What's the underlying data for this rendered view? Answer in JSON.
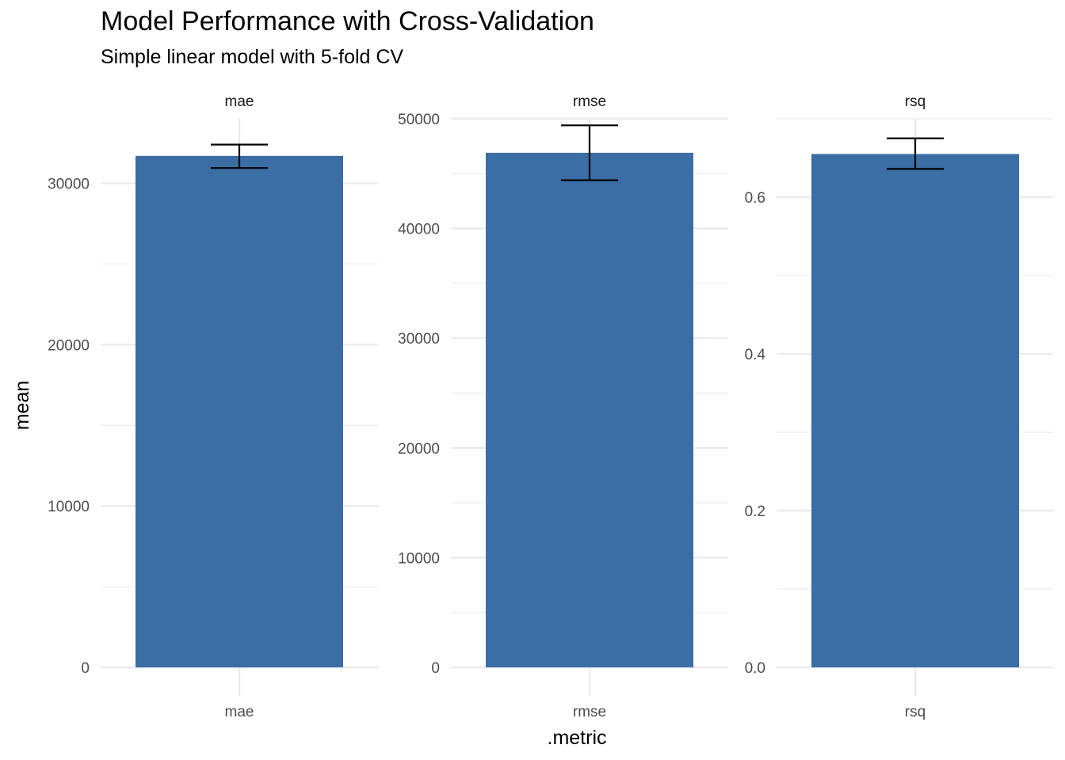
{
  "chart_data": {
    "type": "bar",
    "title": "Model Performance with Cross-Validation",
    "subtitle": "Simple linear model with 5-fold CV",
    "xlabel": ".metric",
    "ylabel": "mean",
    "bar_color": "#3A6EA5",
    "errorbar_color": "#000000",
    "grid_color": "#EBEBEB",
    "grid": true,
    "facets": [
      {
        "strip": "mae",
        "category": "mae",
        "value": 31700,
        "err_low": 30950,
        "err_high": 32400,
        "ylim": [
          0,
          34000
        ],
        "major_ticks": [
          0,
          10000,
          20000,
          30000
        ],
        "tick_labels": [
          "0",
          "10000",
          "20000",
          "30000"
        ]
      },
      {
        "strip": "rmse",
        "category": "rmse",
        "value": 46900,
        "err_low": 44400,
        "err_high": 49400,
        "ylim": [
          0,
          50000
        ],
        "major_ticks": [
          0,
          10000,
          20000,
          30000,
          40000,
          50000
        ],
        "tick_labels": [
          "0",
          "10000",
          "20000",
          "30000",
          "40000",
          "50000"
        ]
      },
      {
        "strip": "rsq",
        "category": "rsq",
        "value": 0.655,
        "err_low": 0.636,
        "err_high": 0.675,
        "ylim": [
          0,
          0.7
        ],
        "major_ticks": [
          0,
          0.2,
          0.4,
          0.6
        ],
        "tick_labels": [
          "0.0",
          "0.2",
          "0.4",
          "0.6"
        ]
      }
    ]
  }
}
